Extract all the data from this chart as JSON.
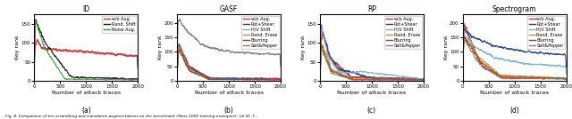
{
  "subplots": [
    {
      "title": "ID",
      "label": "(a)",
      "ylim": [
        0,
        175
      ],
      "yticks": [
        0,
        50,
        100,
        150
      ],
      "series": [
        {
          "label": "w/o Aug.",
          "color": "#d62728",
          "lw": 1.0
        },
        {
          "label": "Rand. Shift",
          "color": "#1a1a1a",
          "lw": 0.8
        },
        {
          "label": "Noise Aug.",
          "color": "#2ca02c",
          "lw": 0.8
        }
      ]
    },
    {
      "title": "GASF",
      "label": "(b)",
      "ylim": [
        0,
        230
      ],
      "yticks": [
        0,
        50,
        100,
        150,
        200
      ],
      "series": [
        {
          "label": "w/o Aug.",
          "color": "#d62728",
          "lw": 1.0
        },
        {
          "label": "Rot+Shear",
          "color": "#1f3d8c",
          "lw": 0.8
        },
        {
          "label": "H/V Shift",
          "color": "#6baed6",
          "lw": 0.8
        },
        {
          "label": "Rand. Erase",
          "color": "#e6820a",
          "lw": 0.8
        },
        {
          "label": "Blurring",
          "color": "#8B4513",
          "lw": 0.8
        },
        {
          "label": "Salt&Pepper",
          "color": "#7f7f7f",
          "lw": 0.8
        }
      ]
    },
    {
      "title": "RP",
      "label": "(c)",
      "ylim": [
        0,
        175
      ],
      "yticks": [
        0,
        50,
        100,
        150
      ],
      "series": [
        {
          "label": "w/o Aug.",
          "color": "#d62728",
          "lw": 1.0
        },
        {
          "label": "Rot+Shear",
          "color": "#1f3d8c",
          "lw": 0.8
        },
        {
          "label": "H/V Shift",
          "color": "#6baed6",
          "lw": 0.8
        },
        {
          "label": "Rand. Erase",
          "color": "#e6820a",
          "lw": 0.8
        },
        {
          "label": "Blurring",
          "color": "#8B4513",
          "lw": 0.8
        },
        {
          "label": "Salt&Pepper",
          "color": "#7f7f7f",
          "lw": 0.8
        }
      ]
    },
    {
      "title": "Spectrogram",
      "label": "(d)",
      "ylim": [
        0,
        230
      ],
      "yticks": [
        0,
        50,
        100,
        150,
        200
      ],
      "series": [
        {
          "label": "w/o Aug.",
          "color": "#d62728",
          "lw": 1.0
        },
        {
          "label": "Rot+Shear",
          "color": "#1f3d8c",
          "lw": 0.8
        },
        {
          "label": "H/V Shift",
          "color": "#6baed6",
          "lw": 0.8
        },
        {
          "label": "Rand. Erase",
          "color": "#e6820a",
          "lw": 0.8
        },
        {
          "label": "Blurring",
          "color": "#8B4513",
          "lw": 0.8
        },
        {
          "label": "Salt&Pepper",
          "color": "#7f7f7f",
          "lw": 0.8
        }
      ]
    }
  ],
  "xlabel": "Number of attack traces",
  "ylabel": "Key rank",
  "xlim": [
    0,
    2000
  ],
  "xticks": [
    0,
    500,
    1000,
    1500,
    2000
  ],
  "caption": "Fig. 4. Comparison of ten scrambling and translation augmentations on the benchmark (Sbox 1000 training examples). (a) ID. T...",
  "fig_size": [
    6.4,
    1.34
  ],
  "dpi": 100
}
